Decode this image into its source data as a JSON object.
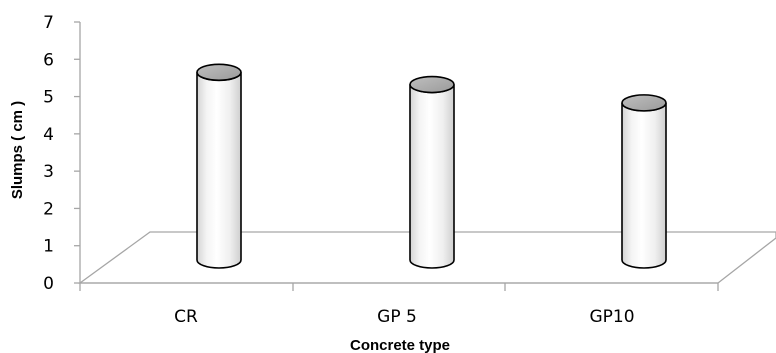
{
  "chart_data": {
    "type": "bar",
    "style": "3d-cylinder",
    "title": "",
    "xlabel": "Concrete type",
    "ylabel": "Slumps ( cm )",
    "ylim": [
      0,
      7
    ],
    "yticks": [
      "0",
      "1",
      "2",
      "3",
      "4",
      "5",
      "6",
      "7"
    ],
    "categories": [
      "CR",
      "GP 5",
      "GP10"
    ],
    "values": [
      6.2,
      5.8,
      5.2
    ],
    "grid": false,
    "legend": "none"
  }
}
